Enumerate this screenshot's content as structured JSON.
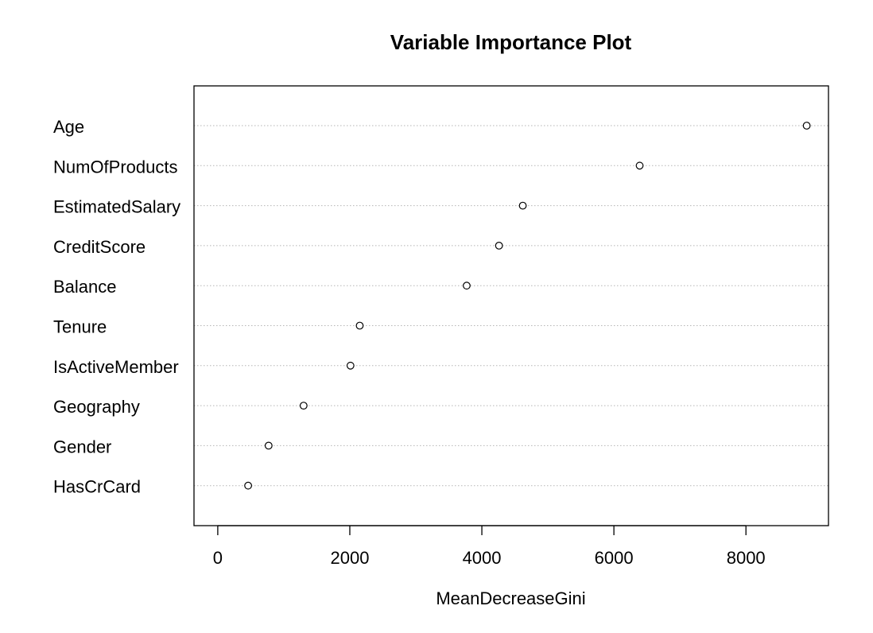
{
  "chart_data": {
    "type": "scatter",
    "title": "Variable Importance Plot",
    "xlabel": "MeanDecreaseGini",
    "ylabel": "",
    "categories": [
      "Age",
      "NumOfProducts",
      "EstimatedSalary",
      "CreditScore",
      "Balance",
      "Tenure",
      "IsActiveMember",
      "Geography",
      "Gender",
      "HasCrCard"
    ],
    "values": [
      8920,
      6390,
      4620,
      4260,
      3770,
      2150,
      2010,
      1300,
      770,
      460
    ],
    "xlim": [
      -360,
      9250
    ],
    "xticks": [
      0,
      2000,
      4000,
      6000,
      8000
    ],
    "xtick_labels": [
      "0",
      "2000",
      "4000",
      "6000",
      "8000"
    ],
    "grid": "dotted horizontal lines at each category",
    "marker": "open circle"
  }
}
